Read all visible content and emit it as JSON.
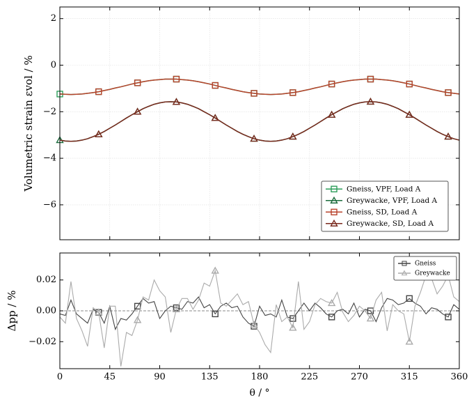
{
  "chart_data": [
    {
      "type": "line",
      "ylabel": "Volumetric strain εvol / %",
      "x": [
        0,
        5,
        10,
        15,
        20,
        25,
        30,
        35,
        40,
        45,
        50,
        55,
        60,
        65,
        70,
        75,
        80,
        85,
        90,
        95,
        100,
        105,
        110,
        115,
        120,
        125,
        130,
        135,
        140,
        145,
        150,
        155,
        160,
        165,
        170,
        175,
        180,
        185,
        190,
        195,
        200,
        205,
        210,
        215,
        220,
        225,
        230,
        235,
        240,
        245,
        250,
        255,
        260,
        265,
        270,
        275,
        280,
        285,
        290,
        295,
        300,
        305,
        310,
        315,
        320,
        325,
        330,
        335,
        340,
        345,
        350,
        355,
        360
      ],
      "xlim": [
        0,
        360
      ],
      "xticks": [
        0,
        45,
        90,
        135,
        180,
        225,
        270,
        315,
        360
      ],
      "ylim": [
        -7.5,
        2.5
      ],
      "yticks": [
        2,
        0,
        {
          "value": -2,
          "label": "−2"
        },
        {
          "value": -4,
          "label": "−4"
        },
        {
          "value": -6,
          "label": "−6"
        }
      ],
      "grid": true,
      "legend": "lower right",
      "series": [
        {
          "name": "Gneiss, VPF, Load A",
          "color": "#2e9e5b",
          "marker": "square",
          "markevery": [
            0,
            7
          ],
          "values": [
            -1.24,
            -1.25,
            -1.26,
            -1.25,
            -1.24,
            -1.21,
            -1.18,
            -1.14,
            -1.09,
            -1.04,
            -0.98,
            -0.93,
            -0.87,
            -0.81,
            -0.76,
            -0.71,
            -0.67,
            -0.64,
            -0.62,
            -0.6,
            -0.6,
            -0.6,
            -0.62,
            -0.64,
            -0.67,
            -0.71,
            -0.76,
            -0.81,
            -0.87,
            -0.93,
            -0.98,
            -1.04,
            -1.09,
            -1.14,
            -1.18,
            -1.21,
            -1.24,
            -1.25,
            -1.26,
            -1.25,
            -1.24,
            -1.21,
            -1.18,
            -1.14,
            -1.09,
            -1.04,
            -0.98,
            -0.93,
            -0.87,
            -0.81,
            -0.76,
            -0.71,
            -0.67,
            -0.64,
            -0.62,
            -0.6,
            -0.6,
            -0.6,
            -0.62,
            -0.64,
            -0.67,
            -0.71,
            -0.76,
            -0.81,
            -0.87,
            -0.93,
            -0.98,
            -1.04,
            -1.09,
            -1.14,
            -1.18,
            -1.21,
            -1.24
          ]
        },
        {
          "name": "Greywacke, VPF, Load A",
          "color": "#1b6b3c",
          "marker": "triangle",
          "markevery": [
            0,
            7
          ],
          "values": [
            -3.22,
            -3.26,
            -3.27,
            -3.26,
            -3.22,
            -3.16,
            -3.07,
            -2.97,
            -2.85,
            -2.71,
            -2.57,
            -2.42,
            -2.27,
            -2.13,
            -2.0,
            -1.87,
            -1.77,
            -1.68,
            -1.62,
            -1.58,
            -1.57,
            -1.58,
            -1.62,
            -1.68,
            -1.77,
            -1.87,
            -2.0,
            -2.13,
            -2.27,
            -2.42,
            -2.57,
            -2.71,
            -2.85,
            -2.97,
            -3.07,
            -3.16,
            -3.22,
            -3.26,
            -3.27,
            -3.26,
            -3.22,
            -3.16,
            -3.07,
            -2.97,
            -2.85,
            -2.71,
            -2.57,
            -2.42,
            -2.27,
            -2.13,
            -2.0,
            -1.87,
            -1.77,
            -1.68,
            -1.62,
            -1.58,
            -1.57,
            -1.58,
            -1.62,
            -1.68,
            -1.77,
            -1.87,
            -2.0,
            -2.13,
            -2.27,
            -2.42,
            -2.57,
            -2.71,
            -2.85,
            -2.97,
            -3.07,
            -3.16,
            -3.22
          ]
        },
        {
          "name": "Gneiss, SD, Load A",
          "color": "#b8432c",
          "marker": "square",
          "markevery": [
            7,
            7
          ],
          "values": [
            -1.24,
            -1.25,
            -1.26,
            -1.25,
            -1.24,
            -1.21,
            -1.18,
            -1.14,
            -1.09,
            -1.04,
            -0.98,
            -0.93,
            -0.87,
            -0.81,
            -0.76,
            -0.71,
            -0.67,
            -0.64,
            -0.62,
            -0.6,
            -0.6,
            -0.6,
            -0.62,
            -0.64,
            -0.67,
            -0.71,
            -0.76,
            -0.81,
            -0.87,
            -0.93,
            -0.98,
            -1.04,
            -1.09,
            -1.14,
            -1.18,
            -1.21,
            -1.24,
            -1.25,
            -1.26,
            -1.25,
            -1.24,
            -1.21,
            -1.18,
            -1.14,
            -1.09,
            -1.04,
            -0.98,
            -0.93,
            -0.87,
            -0.81,
            -0.76,
            -0.71,
            -0.67,
            -0.64,
            -0.62,
            -0.6,
            -0.6,
            -0.6,
            -0.62,
            -0.64,
            -0.67,
            -0.71,
            -0.76,
            -0.81,
            -0.87,
            -0.93,
            -0.98,
            -1.04,
            -1.09,
            -1.14,
            -1.18,
            -1.21,
            -1.24
          ]
        },
        {
          "name": "Greywacke, SD, Load A",
          "color": "#7a2a1e",
          "marker": "triangle",
          "markevery": [
            7,
            7
          ],
          "values": [
            -3.22,
            -3.26,
            -3.27,
            -3.26,
            -3.22,
            -3.16,
            -3.07,
            -2.97,
            -2.85,
            -2.71,
            -2.57,
            -2.42,
            -2.27,
            -2.13,
            -2.0,
            -1.87,
            -1.77,
            -1.68,
            -1.62,
            -1.58,
            -1.57,
            -1.58,
            -1.62,
            -1.68,
            -1.77,
            -1.87,
            -2.0,
            -2.13,
            -2.27,
            -2.42,
            -2.57,
            -2.71,
            -2.85,
            -2.97,
            -3.07,
            -3.16,
            -3.22,
            -3.26,
            -3.27,
            -3.26,
            -3.22,
            -3.16,
            -3.07,
            -2.97,
            -2.85,
            -2.71,
            -2.57,
            -2.42,
            -2.27,
            -2.13,
            -2.0,
            -1.87,
            -1.77,
            -1.68,
            -1.62,
            -1.58,
            -1.57,
            -1.58,
            -1.62,
            -1.68,
            -1.77,
            -1.87,
            -2.0,
            -2.13,
            -2.27,
            -2.42,
            -2.57,
            -2.71,
            -2.85,
            -2.97,
            -3.07,
            -3.16,
            -3.22
          ]
        }
      ]
    },
    {
      "type": "line",
      "xlabel": "θ / °",
      "ylabel": "Δpp / %",
      "x": [
        0,
        5,
        10,
        15,
        20,
        25,
        30,
        35,
        40,
        45,
        50,
        55,
        60,
        65,
        70,
        75,
        80,
        85,
        90,
        95,
        100,
        105,
        110,
        115,
        120,
        125,
        130,
        135,
        140,
        145,
        150,
        155,
        160,
        165,
        170,
        175,
        180,
        185,
        190,
        195,
        200,
        205,
        210,
        215,
        220,
        225,
        230,
        235,
        240,
        245,
        250,
        255,
        260,
        265,
        270,
        275,
        280,
        285,
        290,
        295,
        300,
        305,
        310,
        315,
        320,
        325,
        330,
        335,
        340,
        345,
        350,
        355,
        360
      ],
      "xlim": [
        0,
        360
      ],
      "xticks": [
        0,
        45,
        90,
        135,
        180,
        225,
        270,
        315,
        360
      ],
      "ylim": [
        -0.0375,
        0.0375
      ],
      "yticks": [
        0.02,
        {
          "value": 0,
          "label": "0.00"
        },
        {
          "value": -0.02,
          "label": "−0.02"
        }
      ],
      "zero_line": true,
      "legend": "upper right",
      "series": [
        {
          "name": "Gneiss",
          "color": "#444444",
          "marker": "square",
          "markevery": [
            7,
            7
          ],
          "values": [
            -0.002,
            -0.003,
            0.007,
            -0.002,
            -0.005,
            -0.008,
            0.001,
            -0.001,
            -0.008,
            0.003,
            -0.012,
            -0.005,
            -0.006,
            -0.002,
            0.003,
            0.008,
            0.005,
            0.006,
            -0.005,
            0.0,
            0.003,
            0.002,
            0.001,
            0.006,
            0.005,
            0.009,
            0.002,
            0.004,
            -0.002,
            0.003,
            0.005,
            0.002,
            0.003,
            -0.004,
            -0.008,
            -0.01,
            0.003,
            -0.003,
            -0.002,
            -0.004,
            0.007,
            -0.004,
            -0.005,
            0.0,
            0.005,
            0.0,
            0.005,
            0.002,
            -0.002,
            -0.004,
            0.0,
            0.001,
            -0.002,
            0.005,
            -0.004,
            0.001,
            0.0,
            -0.007,
            0.002,
            0.008,
            0.007,
            0.004,
            0.005,
            0.008,
            0.005,
            0.003,
            -0.002,
            0.002,
            0.001,
            -0.002,
            -0.004,
            0.004,
            0.001
          ]
        },
        {
          "name": "Greywacke",
          "color": "#aaaaaa",
          "marker": "triangle",
          "markevery": [
            7,
            7
          ],
          "values": [
            -0.004,
            -0.008,
            0.019,
            -0.005,
            -0.013,
            -0.023,
            0.002,
            -0.001,
            -0.024,
            0.003,
            0.003,
            -0.036,
            -0.014,
            -0.016,
            -0.006,
            0.009,
            0.007,
            0.02,
            0.013,
            0.009,
            -0.014,
            0.001,
            0.008,
            0.008,
            0.001,
            0.007,
            0.018,
            0.016,
            0.026,
            0.005,
            0.003,
            0.007,
            0.011,
            0.004,
            0.006,
            -0.009,
            -0.014,
            -0.022,
            -0.027,
            0.004,
            -0.007,
            -0.004,
            -0.011,
            0.019,
            -0.012,
            -0.007,
            0.004,
            0.008,
            0.006,
            0.005,
            0.012,
            -0.001,
            -0.007,
            -0.003,
            0.003,
            0.0,
            -0.005,
            0.007,
            0.012,
            -0.013,
            0.004,
            0.0,
            -0.002,
            -0.02,
            0.003,
            0.012,
            0.023,
            0.021,
            0.011,
            0.016,
            0.023,
            0.009,
            0.006
          ]
        }
      ]
    }
  ]
}
